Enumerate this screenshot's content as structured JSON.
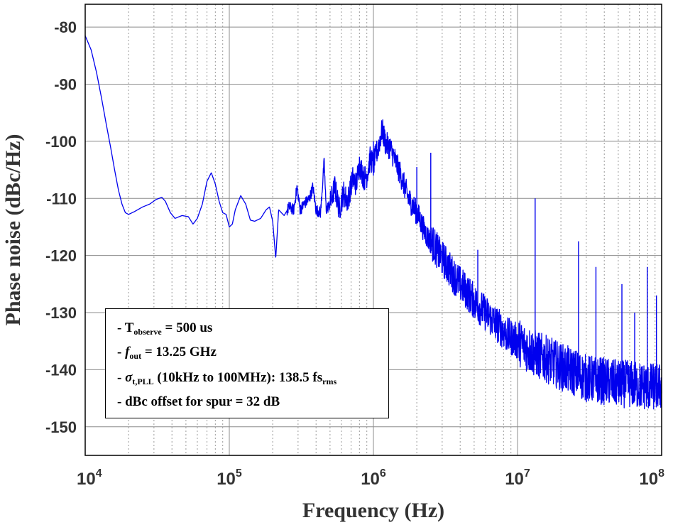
{
  "chart_data": {
    "type": "line",
    "xlabel": "Frequency (Hz)",
    "ylabel": "Phase noise (dBc/Hz)",
    "xscale": "log",
    "xlim": [
      10000,
      100000000
    ],
    "ylim": [
      -155,
      -76
    ],
    "x_ticks": [
      10000,
      100000,
      1000000,
      10000000,
      100000000
    ],
    "x_tick_labels": [
      {
        "base": "10",
        "exp": "4"
      },
      {
        "base": "10",
        "exp": "5"
      },
      {
        "base": "10",
        "exp": "6"
      },
      {
        "base": "10",
        "exp": "7"
      },
      {
        "base": "10",
        "exp": "8"
      }
    ],
    "y_ticks": [
      -80,
      -90,
      -100,
      -110,
      -120,
      -130,
      -140,
      -150
    ],
    "grid": true,
    "line_color": "#0000ee",
    "series": [
      {
        "values_at": [
          [
            10000,
            -81.5
          ],
          [
            11000,
            -84
          ],
          [
            12000,
            -88
          ],
          [
            13000,
            -92.5
          ],
          [
            14000,
            -97
          ],
          [
            15000,
            -101
          ],
          [
            16000,
            -105
          ],
          [
            17000,
            -108.5
          ],
          [
            18000,
            -111
          ],
          [
            19000,
            -112.5
          ],
          [
            20000,
            -112.8
          ],
          [
            22000,
            -112.3
          ],
          [
            25000,
            -111.5
          ],
          [
            28000,
            -111
          ],
          [
            31000,
            -110.2
          ],
          [
            34000,
            -109.8
          ],
          [
            36000,
            -110.5
          ],
          [
            39000,
            -112.5
          ],
          [
            42000,
            -113.5
          ],
          [
            47000,
            -113
          ],
          [
            52000,
            -113.2
          ],
          [
            56000,
            -114.5
          ],
          [
            60000,
            -113.5
          ],
          [
            65000,
            -111
          ],
          [
            70000,
            -107
          ],
          [
            75000,
            -105.5
          ],
          [
            80000,
            -107.5
          ],
          [
            85000,
            -110.5
          ],
          [
            90000,
            -112.5
          ],
          [
            95000,
            -112.8
          ],
          [
            100000,
            -115
          ],
          [
            105000,
            -114.5
          ],
          [
            110000,
            -112
          ],
          [
            120000,
            -109.5
          ],
          [
            130000,
            -111
          ],
          [
            140000,
            -113.8
          ],
          [
            150000,
            -114
          ],
          [
            165000,
            -113.5
          ],
          [
            180000,
            -112
          ],
          [
            190000,
            -111.5
          ],
          [
            200000,
            -114
          ],
          [
            210000,
            -120.5
          ],
          [
            220000,
            -112
          ],
          [
            240000,
            -113
          ],
          [
            260000,
            -111.5
          ],
          [
            280000,
            -112
          ],
          [
            295000,
            -108
          ],
          [
            310000,
            -112
          ],
          [
            330000,
            -111
          ],
          [
            360000,
            -110
          ],
          [
            380000,
            -108
          ],
          [
            400000,
            -112
          ],
          [
            430000,
            -112.5
          ],
          [
            455000,
            -103.5
          ],
          [
            470000,
            -112
          ],
          [
            500000,
            -111
          ],
          [
            540000,
            -108
          ],
          [
            580000,
            -112
          ],
          [
            620000,
            -109
          ],
          [
            660000,
            -110.5
          ],
          [
            720000,
            -106.5
          ],
          [
            760000,
            -107.5
          ],
          [
            800000,
            -104
          ],
          [
            860000,
            -106.5
          ],
          [
            900000,
            -106
          ],
          [
            950000,
            -103
          ],
          [
            1000000,
            -104
          ],
          [
            1080000,
            -101
          ],
          [
            1150000,
            -98
          ],
          [
            1220000,
            -100.5
          ],
          [
            1300000,
            -101
          ],
          [
            1400000,
            -103
          ],
          [
            1500000,
            -105
          ],
          [
            1600000,
            -107
          ],
          [
            1750000,
            -110
          ],
          [
            1900000,
            -111.5
          ],
          [
            2050000,
            -113
          ],
          [
            2200000,
            -115
          ],
          [
            2400000,
            -117
          ],
          [
            2600000,
            -118
          ],
          [
            2900000,
            -120
          ],
          [
            3200000,
            -121.5
          ],
          [
            3600000,
            -123.5
          ],
          [
            4000000,
            -125
          ],
          [
            4500000,
            -126.5
          ],
          [
            5000000,
            -128
          ],
          [
            5700000,
            -129.5
          ],
          [
            6500000,
            -131
          ],
          [
            7500000,
            -132.5
          ],
          [
            8500000,
            -134
          ],
          [
            10000000,
            -135
          ],
          [
            12000000,
            -136.5
          ],
          [
            14000000,
            -137.5
          ],
          [
            17000000,
            -138.5
          ],
          [
            20000000,
            -139.5
          ],
          [
            25000000,
            -140.5
          ],
          [
            30000000,
            -141.5
          ],
          [
            40000000,
            -142
          ],
          [
            50000000,
            -142.5
          ],
          [
            60000000,
            -142.5
          ],
          [
            80000000,
            -143
          ],
          [
            100000000,
            -143
          ]
        ],
        "spurs": [
          [
            455000,
            -103.5
          ],
          [
            1000000,
            -100
          ],
          [
            2000000,
            -104.5
          ],
          [
            2500000,
            -102
          ],
          [
            5300000,
            -119
          ],
          [
            13250000,
            -110
          ],
          [
            26500000,
            -117.5
          ],
          [
            35000000,
            -122
          ],
          [
            53000000,
            -125
          ],
          [
            65000000,
            -130
          ],
          [
            79500000,
            -122
          ],
          [
            92000000,
            -127
          ]
        ]
      }
    ]
  },
  "legend": {
    "line1_prefix": "- T",
    "line1_sub": "observe",
    "line1_suffix": " = 500 us",
    "line2_prefix": "- ",
    "line2_f": "f",
    "line2_sub": "out",
    "line2_suffix": " = 13.25 GHz",
    "line3_prefix": "- ",
    "line3_sigma": "σ",
    "line3_sub": "t,PLL",
    "line3_mid": " (10kHz to 100MHz): 138.5 fs",
    "line3_sub2": "rms",
    "line4": "- dBc offset for spur = 32 dB"
  }
}
